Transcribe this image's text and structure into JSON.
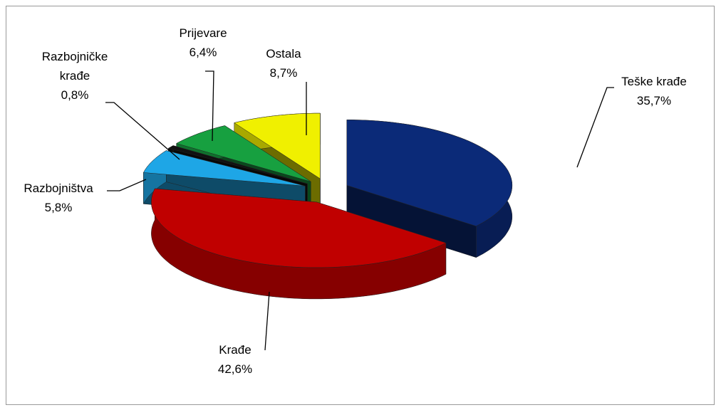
{
  "chart_data": {
    "type": "pie3d",
    "categories": [
      "Teške krađe",
      "Krađe",
      "Razbojništva",
      "Razbojničke krađe",
      "Prijevare",
      "Ostala"
    ],
    "values": [
      35.7,
      42.6,
      5.8,
      0.8,
      6.4,
      8.7
    ],
    "value_labels": [
      "35,7%",
      "42,6%",
      "5,8%",
      "0,8%",
      "6,4%",
      "8,7%"
    ],
    "colors": [
      "#0b2a78",
      "#c00000",
      "#1ea6e6",
      "#111111",
      "#17a040",
      "#f0f000"
    ]
  }
}
